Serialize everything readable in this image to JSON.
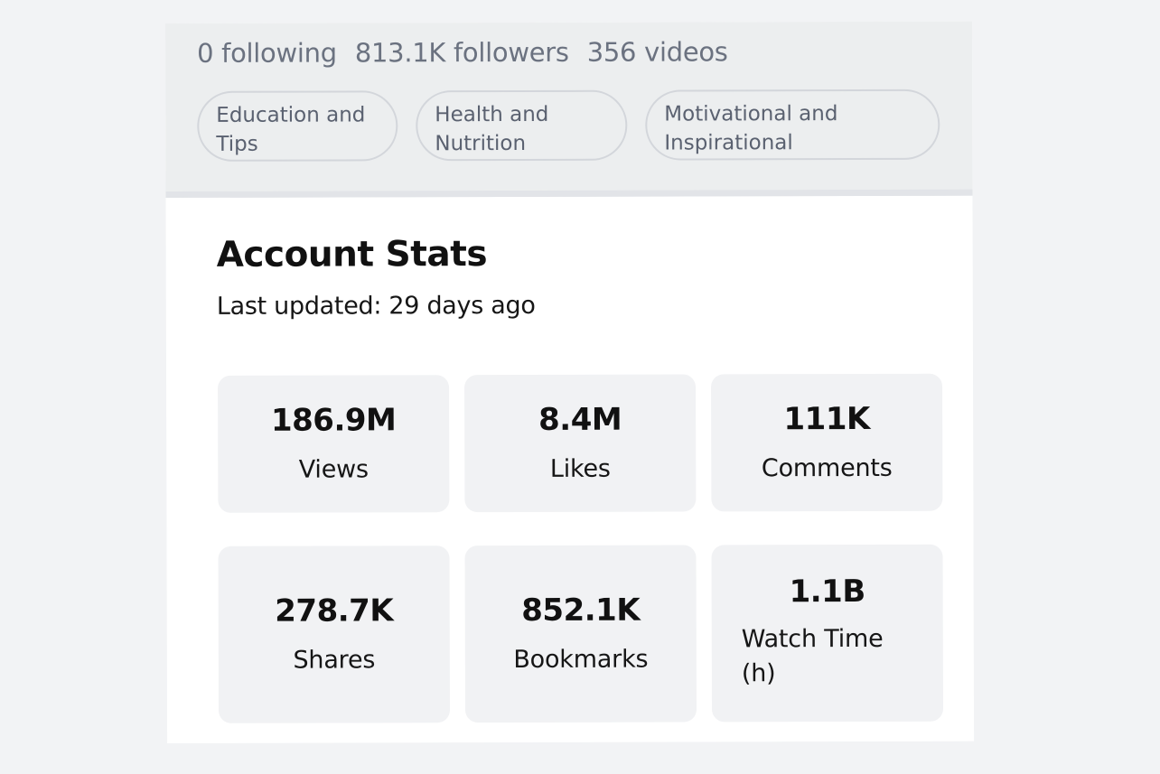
{
  "profile": {
    "following": "0 following",
    "followers": "813.1K followers",
    "videos": "356 videos",
    "tags": [
      {
        "label": "Education and Tips"
      },
      {
        "label": "Health and Nutrition"
      },
      {
        "label": "Motivational and Inspirational"
      }
    ]
  },
  "stats": {
    "title": "Account Stats",
    "updated": "Last updated: 29 days ago",
    "tiles": [
      {
        "value": "186.9M",
        "label": "Views"
      },
      {
        "value": "8.4M",
        "label": "Likes"
      },
      {
        "value": "111K",
        "label": "Comments"
      },
      {
        "value": "278.7K",
        "label": "Shares"
      },
      {
        "value": "852.1K",
        "label": "Bookmarks"
      },
      {
        "value": "1.1B",
        "label": "Watch Time (h)"
      }
    ]
  }
}
